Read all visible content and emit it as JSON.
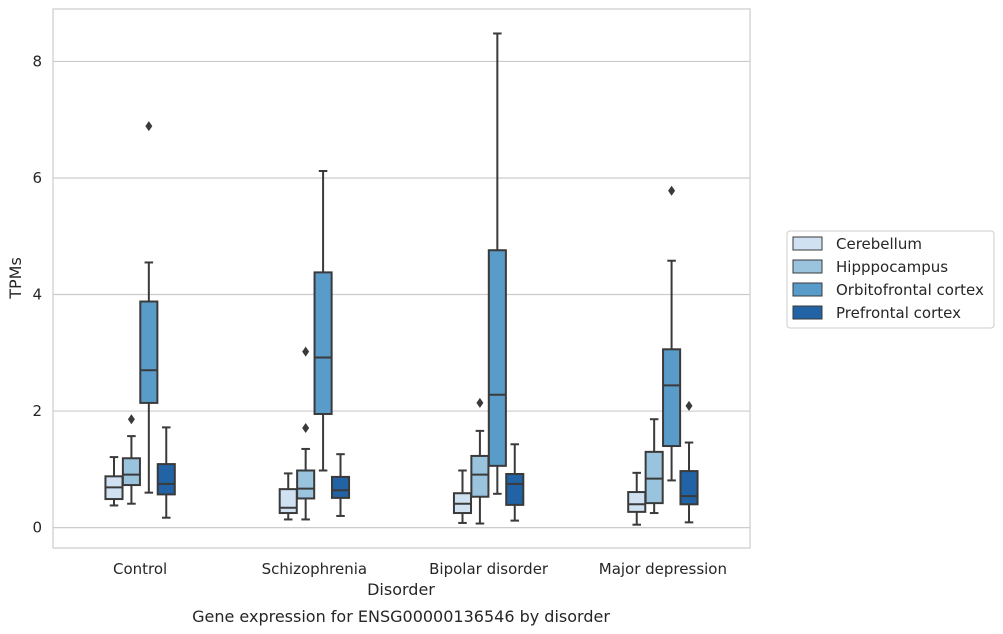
{
  "chart_data": {
    "type": "box",
    "caption": "Gene expression for ENSG00000136546 by disorder",
    "xlabel": "Disorder",
    "ylabel": "TPMs",
    "ylim": [
      -0.35,
      8.9
    ],
    "yticks": [
      0,
      2,
      4,
      6,
      8
    ],
    "grid": "horizontal",
    "legend_position": "right",
    "categories": [
      "Control",
      "Schizophrenia",
      "Bipolar disorder",
      "Major depression"
    ],
    "series": [
      {
        "name": "Cerebellum",
        "color": "#d0e2f2",
        "boxes": [
          {
            "whislo": 0.38,
            "q1": 0.49,
            "med": 0.69,
            "q3": 0.88,
            "whishi": 1.21,
            "fliers": []
          },
          {
            "whislo": 0.14,
            "q1": 0.25,
            "med": 0.34,
            "q3": 0.66,
            "whishi": 0.93,
            "fliers": []
          },
          {
            "whislo": 0.08,
            "q1": 0.25,
            "med": 0.41,
            "q3": 0.59,
            "whishi": 0.98,
            "fliers": []
          },
          {
            "whislo": 0.05,
            "q1": 0.27,
            "med": 0.4,
            "q3": 0.61,
            "whishi": 0.94,
            "fliers": []
          }
        ]
      },
      {
        "name": "Hipppocampus",
        "color": "#9ac4de",
        "boxes": [
          {
            "whislo": 0.41,
            "q1": 0.73,
            "med": 0.91,
            "q3": 1.19,
            "whishi": 1.57,
            "fliers": [
              1.86
            ]
          },
          {
            "whislo": 0.14,
            "q1": 0.5,
            "med": 0.67,
            "q3": 0.98,
            "whishi": 1.35,
            "fliers": [
              1.71,
              3.02
            ]
          },
          {
            "whislo": 0.07,
            "q1": 0.53,
            "med": 0.91,
            "q3": 1.23,
            "whishi": 1.66,
            "fliers": [
              2.14
            ]
          },
          {
            "whislo": 0.25,
            "q1": 0.42,
            "med": 0.84,
            "q3": 1.3,
            "whishi": 1.86,
            "fliers": []
          }
        ]
      },
      {
        "name": "Orbitofrontal cortex",
        "color": "#5a9cc9",
        "boxes": [
          {
            "whislo": 0.6,
            "q1": 2.14,
            "med": 2.7,
            "q3": 3.88,
            "whishi": 4.55,
            "fliers": [
              6.89
            ]
          },
          {
            "whislo": 0.98,
            "q1": 1.95,
            "med": 2.92,
            "q3": 4.38,
            "whishi": 6.12,
            "fliers": []
          },
          {
            "whislo": 0.58,
            "q1": 1.06,
            "med": 2.28,
            "q3": 4.76,
            "whishi": 8.48,
            "fliers": []
          },
          {
            "whislo": 0.81,
            "q1": 1.4,
            "med": 2.44,
            "q3": 3.06,
            "whishi": 4.58,
            "fliers": [
              5.78
            ]
          }
        ]
      },
      {
        "name": "Prefrontal cortex",
        "color": "#2163a5",
        "boxes": [
          {
            "whislo": 0.17,
            "q1": 0.57,
            "med": 0.75,
            "q3": 1.09,
            "whishi": 1.72,
            "fliers": []
          },
          {
            "whislo": 0.2,
            "q1": 0.51,
            "med": 0.64,
            "q3": 0.87,
            "whishi": 1.26,
            "fliers": []
          },
          {
            "whislo": 0.12,
            "q1": 0.39,
            "med": 0.75,
            "q3": 0.92,
            "whishi": 1.43,
            "fliers": []
          },
          {
            "whislo": 0.09,
            "q1": 0.4,
            "med": 0.54,
            "q3": 0.97,
            "whishi": 1.46,
            "fliers": [
              2.09
            ]
          }
        ]
      }
    ]
  }
}
